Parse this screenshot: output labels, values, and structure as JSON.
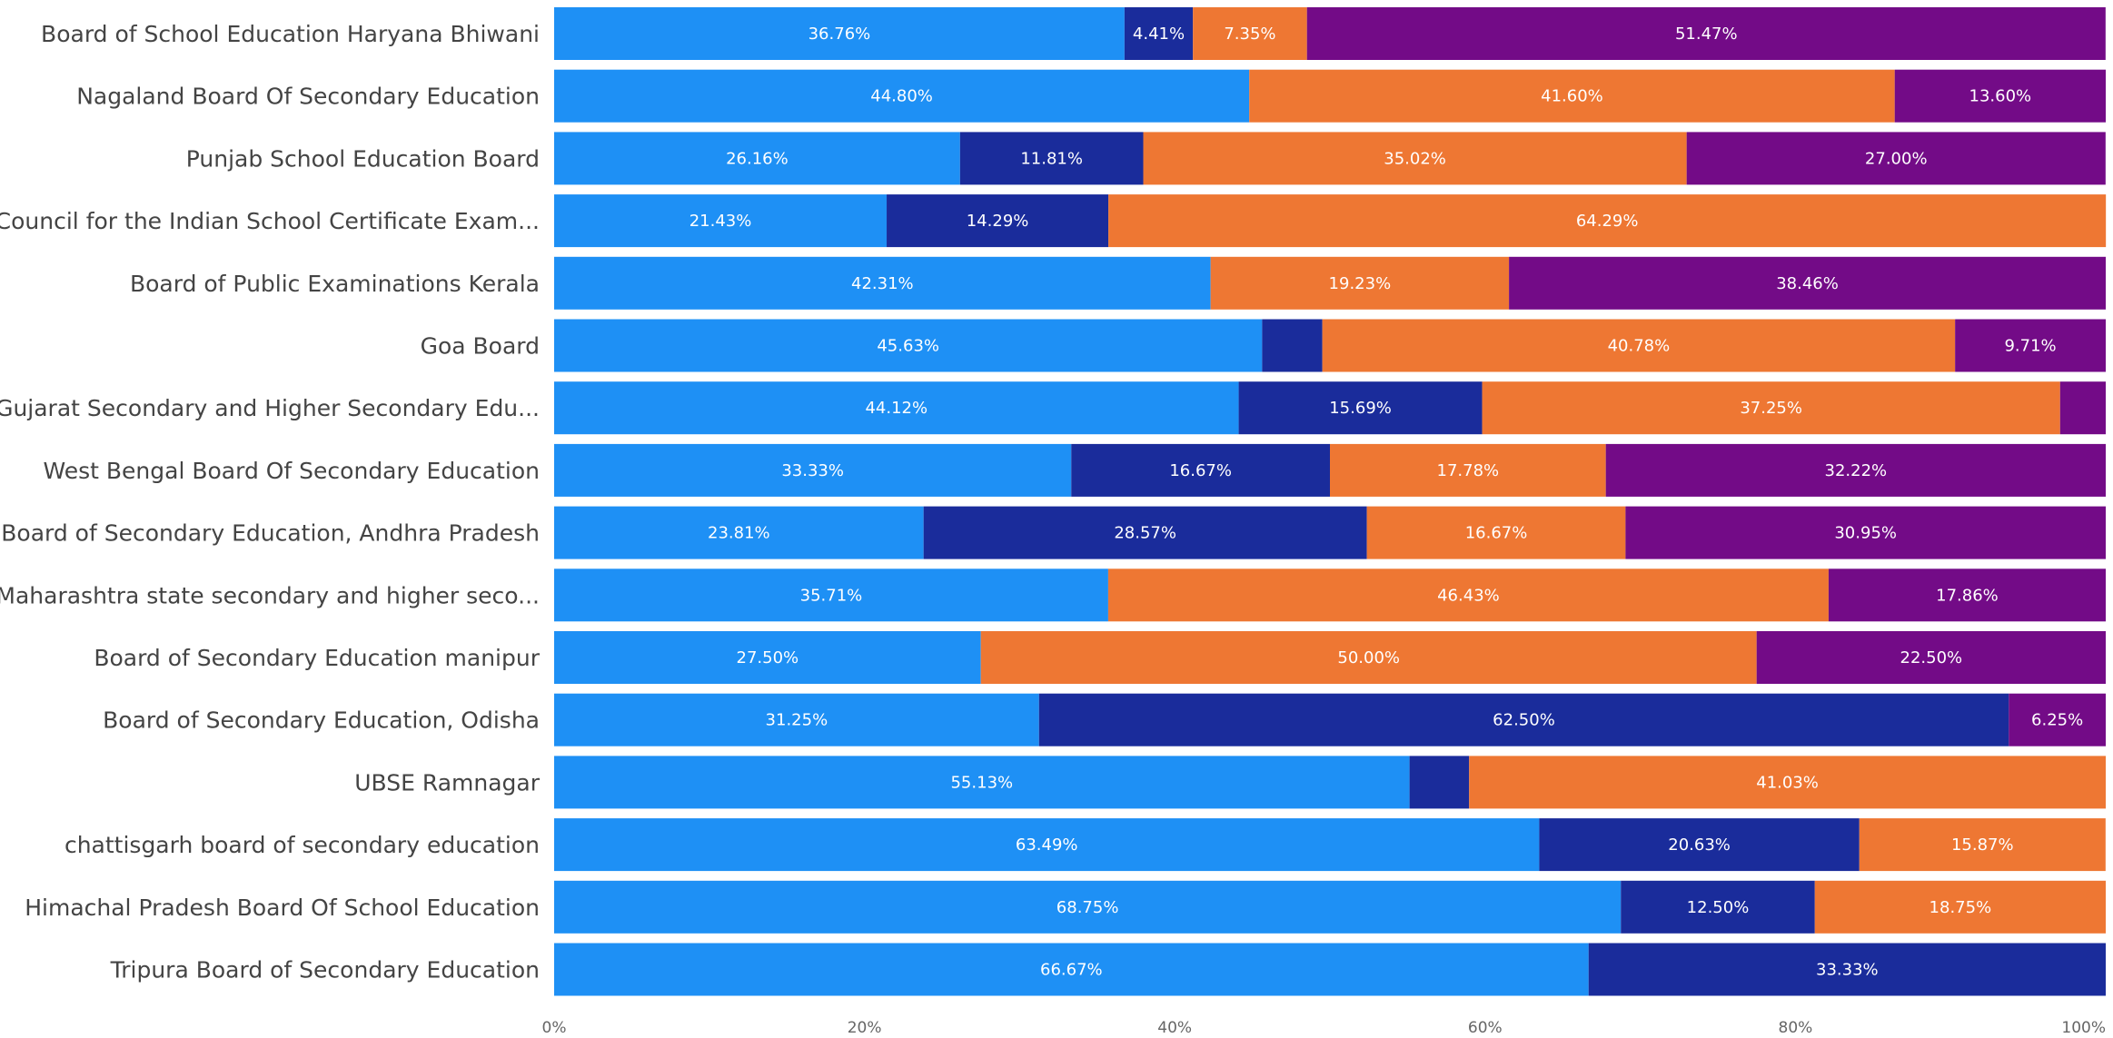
{
  "chart_data": {
    "type": "bar",
    "orientation": "horizontal",
    "stacked": "100%",
    "categories": [
      "Board of School Education Haryana Bhiwani",
      "Nagaland Board Of Secondary Education",
      "Punjab School Education Board",
      "Council for the Indian School Certificate Exam...",
      "Board of Public Examinations Kerala",
      "Goa Board",
      "Gujarat Secondary and Higher Secondary Edu...",
      "West Bengal Board Of Secondary Education",
      "Board of Secondary Education, Andhra Pradesh",
      "Maharashtra state secondary and higher seco...",
      "Board of Secondary Education manipur",
      "Board of Secondary Education, Odisha",
      "UBSE Ramnagar",
      "chattisgarh board of secondary education",
      "Himachal Pradesh Board Of School Education",
      "Tripura Board of Secondary Education"
    ],
    "series": [
      {
        "color": "#1E90F5",
        "values": [
          36.76,
          44.8,
          26.16,
          21.43,
          42.31,
          45.63,
          44.12,
          33.33,
          23.81,
          35.71,
          27.5,
          31.25,
          55.13,
          63.49,
          68.75,
          66.67
        ],
        "labels": [
          "36.76%",
          "44.80%",
          "26.16%",
          "21.43%",
          "42.31%",
          "45.63%",
          "44.12%",
          "33.33%",
          "23.81%",
          "35.71%",
          "27.50%",
          "31.25%",
          "55.13%",
          "63.49%",
          "68.75%",
          "66.67%"
        ]
      },
      {
        "color": "#1A2C9B",
        "values": [
          4.41,
          0,
          11.81,
          14.29,
          0,
          3.88,
          15.69,
          16.67,
          28.57,
          0,
          0,
          62.5,
          3.84,
          20.63,
          12.5,
          33.33
        ],
        "labels": [
          "4.41%",
          "",
          "11.81%",
          "14.29%",
          "",
          "",
          "15.69%",
          "16.67%",
          "28.57%",
          "",
          "",
          "62.50%",
          "",
          "20.63%",
          "12.50%",
          "33.33%"
        ]
      },
      {
        "color": "#EE7733",
        "values": [
          7.35,
          41.6,
          35.02,
          64.29,
          19.23,
          40.78,
          37.25,
          17.78,
          16.67,
          46.43,
          50.0,
          0,
          41.03,
          15.87,
          18.75,
          0
        ],
        "labels": [
          "7.35%",
          "41.60%",
          "35.02%",
          "64.29%",
          "19.23%",
          "40.78%",
          "37.25%",
          "17.78%",
          "16.67%",
          "46.43%",
          "50.00%",
          "",
          "41.03%",
          "15.87%",
          "18.75%",
          ""
        ]
      },
      {
        "color": "#730B87",
        "values": [
          51.47,
          13.6,
          27.0,
          0,
          38.46,
          9.71,
          2.94,
          32.22,
          30.95,
          17.86,
          22.5,
          6.25,
          0,
          0,
          0,
          0
        ],
        "labels": [
          "51.47%",
          "13.60%",
          "27.00%",
          "",
          "38.46%",
          "9.71%",
          "",
          "32.22%",
          "30.95%",
          "17.86%",
          "22.50%",
          "6.25%",
          "",
          "",
          "",
          ""
        ]
      }
    ],
    "xlim": [
      0,
      100
    ],
    "xticks": [
      "0%",
      "20%",
      "40%",
      "60%",
      "80%",
      "100%"
    ],
    "title": "",
    "xlabel": "",
    "ylabel": "",
    "legend": "none",
    "grid": false
  }
}
